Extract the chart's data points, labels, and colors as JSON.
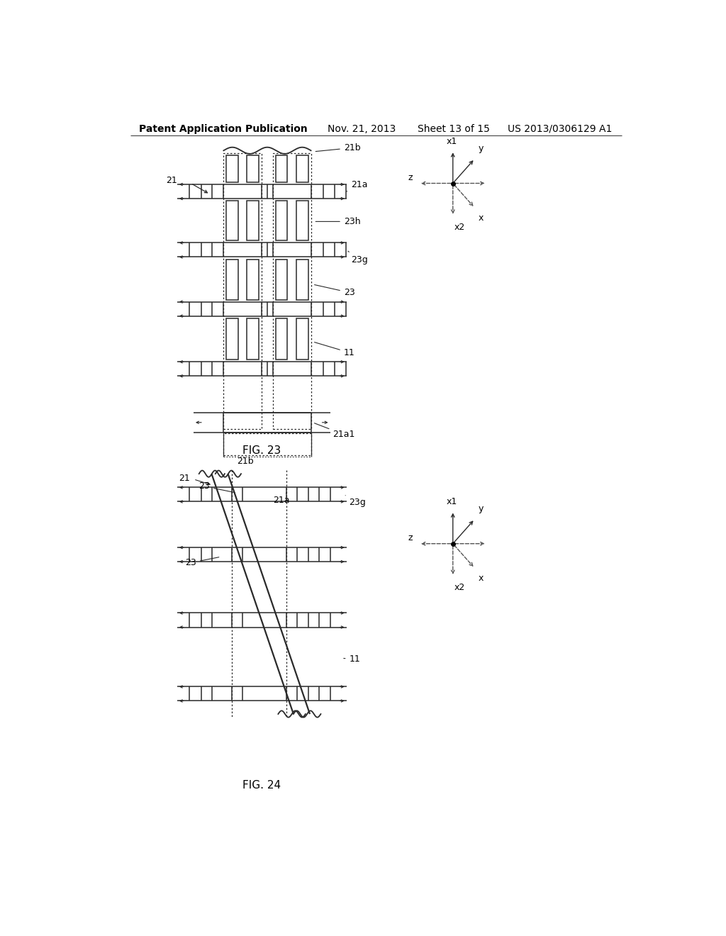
{
  "bg_color": "#ffffff",
  "header_text": "Patent Application Publication",
  "header_date": "Nov. 21, 2013",
  "header_sheet": "Sheet 13 of 15",
  "header_patent": "US 2013/0306129 A1",
  "fig23_label": "FIG. 23",
  "fig24_label": "FIG. 24",
  "line_color": "#2a2a2a",
  "label_color": "#000000"
}
